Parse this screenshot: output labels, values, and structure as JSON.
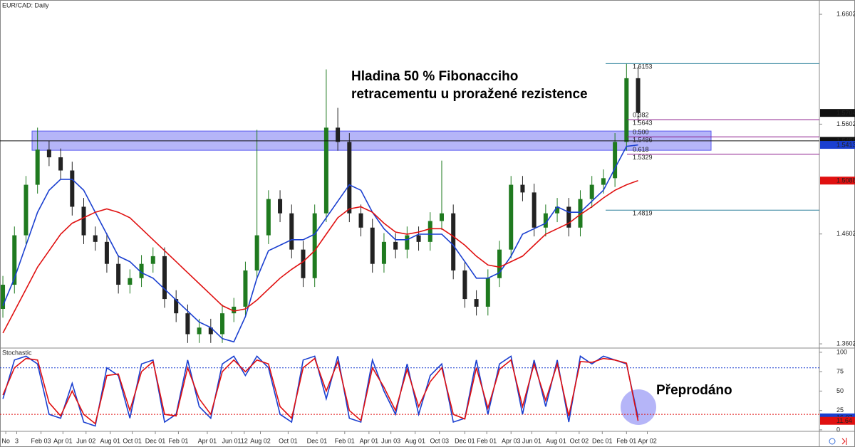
{
  "chart_data": [
    {
      "type": "candlestick",
      "title": "EUR/CAD: Daily",
      "xlim": [
        -0.25,
        70.7
      ],
      "open": [
        1.392,
        1.414,
        1.459,
        1.505,
        1.537,
        1.53,
        1.518,
        1.485,
        1.459,
        1.453,
        1.433,
        1.414,
        1.42,
        1.433,
        1.44,
        1.401,
        1.388,
        1.369,
        1.375,
        1.369,
        1.388,
        1.394,
        1.427,
        1.459,
        1.492,
        1.479,
        1.446,
        1.42,
        1.479,
        1.557,
        1.544,
        1.479,
        1.466,
        1.433,
        1.453,
        1.446,
        1.459,
        1.453,
        1.472,
        1.479,
        1.427,
        1.401,
        1.394,
        1.42,
        1.446,
        1.505,
        1.498,
        1.466,
        1.479,
        1.485,
        1.466,
        1.492,
        1.505,
        1.511,
        1.544,
        1.602
      ],
      "high": [
        1.422,
        1.467,
        1.513,
        1.557,
        1.545,
        1.538,
        1.526,
        1.493,
        1.467,
        1.461,
        1.441,
        1.428,
        1.441,
        1.448,
        1.448,
        1.409,
        1.396,
        1.383,
        1.383,
        1.396,
        1.402,
        1.435,
        1.555,
        1.5,
        1.5,
        1.487,
        1.454,
        1.487,
        1.61,
        1.575,
        1.552,
        1.487,
        1.474,
        1.461,
        1.461,
        1.467,
        1.467,
        1.48,
        1.527,
        1.487,
        1.435,
        1.409,
        1.428,
        1.454,
        1.513,
        1.513,
        1.506,
        1.487,
        1.493,
        1.493,
        1.5,
        1.513,
        1.519,
        1.552,
        1.6153,
        1.612
      ],
      "low": [
        1.384,
        1.406,
        1.451,
        1.497,
        1.522,
        1.51,
        1.477,
        1.451,
        1.445,
        1.425,
        1.406,
        1.406,
        1.412,
        1.425,
        1.393,
        1.38,
        1.361,
        1.361,
        1.361,
        1.361,
        1.38,
        1.386,
        1.419,
        1.451,
        1.471,
        1.438,
        1.412,
        1.412,
        1.471,
        1.536,
        1.471,
        1.458,
        1.425,
        1.425,
        1.438,
        1.438,
        1.445,
        1.445,
        1.464,
        1.419,
        1.393,
        1.386,
        1.386,
        1.412,
        1.438,
        1.49,
        1.458,
        1.458,
        1.471,
        1.458,
        1.458,
        1.484,
        1.497,
        1.503,
        1.536,
        1.562
      ],
      "close": [
        1.414,
        1.459,
        1.505,
        1.537,
        1.53,
        1.518,
        1.485,
        1.459,
        1.453,
        1.433,
        1.414,
        1.42,
        1.433,
        1.44,
        1.401,
        1.388,
        1.369,
        1.375,
        1.369,
        1.388,
        1.394,
        1.427,
        1.459,
        1.492,
        1.479,
        1.446,
        1.42,
        1.479,
        1.557,
        1.544,
        1.479,
        1.466,
        1.433,
        1.453,
        1.446,
        1.459,
        1.453,
        1.472,
        1.479,
        1.427,
        1.401,
        1.394,
        1.42,
        1.446,
        1.505,
        1.498,
        1.466,
        1.479,
        1.485,
        1.466,
        1.492,
        1.505,
        1.511,
        1.544,
        1.602,
        1.5704
      ],
      "up_color": "#1f7a1f",
      "down_color": "#222222",
      "series": [
        {
          "color": "#1a3fd0",
          "values": [
            1.395,
            1.42,
            1.45,
            1.48,
            1.5,
            1.51,
            1.51,
            1.5,
            1.48,
            1.46,
            1.44,
            1.435,
            1.425,
            1.42,
            1.41,
            1.4,
            1.39,
            1.38,
            1.375,
            1.365,
            1.362,
            1.385,
            1.42,
            1.445,
            1.45,
            1.455,
            1.455,
            1.46,
            1.475,
            1.49,
            1.505,
            1.5,
            1.48,
            1.465,
            1.455,
            1.455,
            1.46,
            1.46,
            1.46,
            1.45,
            1.435,
            1.42,
            1.42,
            1.425,
            1.44,
            1.46,
            1.465,
            1.47,
            1.485,
            1.48,
            1.48,
            1.49,
            1.5,
            1.52,
            1.54,
            1.5413
          ]
        },
        {
          "color": "#e01010",
          "values": [
            1.37,
            1.39,
            1.41,
            1.43,
            1.445,
            1.46,
            1.47,
            1.475,
            1.48,
            1.483,
            1.48,
            1.475,
            1.465,
            1.455,
            1.445,
            1.435,
            1.425,
            1.415,
            1.405,
            1.395,
            1.39,
            1.392,
            1.4,
            1.41,
            1.42,
            1.428,
            1.435,
            1.445,
            1.46,
            1.475,
            1.483,
            1.485,
            1.48,
            1.47,
            1.462,
            1.46,
            1.462,
            1.465,
            1.465,
            1.458,
            1.45,
            1.44,
            1.432,
            1.43,
            1.435,
            1.44,
            1.45,
            1.46,
            1.465,
            1.47,
            1.478,
            1.485,
            1.493,
            1.5,
            1.505,
            1.5088
          ]
        }
      ],
      "ylim": [
        1.357,
        1.6732
      ],
      "yticks": [
        1.6602,
        1.5602,
        1.4602,
        1.3602
      ],
      "zone": [
        1.5364,
        1.5539
      ],
      "zone_color": "#5a5af0",
      "hline": {
        "value": 1.545,
        "label": "1.5450"
      },
      "fib": [
        {
          "price": 1.6153,
          "color": "#2a7f9a"
        },
        {
          "ratio": "0.382",
          "price": 1.5643,
          "color": "#8a1a8a"
        },
        {
          "ratio": "0.500",
          "price": 1.5486,
          "color": "#8a1a8a"
        },
        {
          "ratio": "0.618",
          "price": 1.5329,
          "color": "#8a1a8a"
        },
        {
          "price": 1.4819,
          "color": "#2a7f9a"
        }
      ],
      "price_tags": [
        {
          "value": 1.5704,
          "color": "#111111"
        },
        {
          "value": {
            "value": 1.545,
            "label": "1.5450"
          },
          "color": "#111111"
        },
        {
          "value": 1.5413,
          "color": "#1a3fd0"
        },
        {
          "value": 1.5088,
          "color": "#e01010"
        }
      ],
      "annotation": [
        "Hladina 50 % Fibonacciho",
        "retracementu u proražené rezistence"
      ]
    },
    {
      "type": "line",
      "title": "Stochastic",
      "xlim": [
        -0.25,
        70.7
      ],
      "series": [
        {
          "color": "#1a3fd0",
          "values": [
            40,
            90,
            95,
            85,
            20,
            15,
            60,
            10,
            5,
            80,
            70,
            15,
            85,
            90,
            10,
            20,
            90,
            30,
            15,
            85,
            95,
            70,
            95,
            80,
            20,
            10,
            90,
            95,
            40,
            95,
            15,
            10,
            90,
            50,
            20,
            85,
            20,
            70,
            85,
            10,
            15,
            90,
            20,
            85,
            95,
            20,
            90,
            30,
            90,
            10,
            95,
            85,
            95,
            90,
            85,
            16.07
          ]
        },
        {
          "color": "#e01010",
          "values": [
            45,
            80,
            92,
            90,
            35,
            18,
            50,
            20,
            8,
            70,
            72,
            25,
            75,
            88,
            20,
            18,
            80,
            40,
            20,
            75,
            90,
            75,
            90,
            85,
            30,
            15,
            80,
            92,
            50,
            88,
            25,
            12,
            80,
            55,
            25,
            78,
            30,
            62,
            80,
            20,
            14,
            80,
            28,
            78,
            90,
            30,
            85,
            38,
            85,
            18,
            88,
            87,
            92,
            90,
            86,
            11.64
          ]
        }
      ],
      "ylim": [
        -1,
        104.5
      ],
      "yticks": [
        100,
        75,
        50,
        25,
        0
      ],
      "levels": [
        {
          "value": 80,
          "color": "#1a3fd0"
        },
        {
          "value": 20,
          "color": "#e01010"
        }
      ],
      "price_tags": [
        {
          "value": 16.07,
          "color": "#1a3fd0"
        },
        {
          "value": 11.64,
          "color": "#e01010"
        }
      ],
      "xticks": [
        {
          "value": 0.25,
          "label": "No"
        },
        {
          "value": 1.2,
          "label": "3"
        },
        {
          "value": 3.3,
          "label": "Feb 03"
        },
        {
          "value": 5.2,
          "label": "Apr 01"
        },
        {
          "value": 7.2,
          "label": "Jun 02"
        },
        {
          "value": 9.3,
          "label": "Aug 01"
        },
        {
          "value": 11.2,
          "label": "Oct 01"
        },
        {
          "value": 13.2,
          "label": "Dec 01"
        },
        {
          "value": 15.2,
          "label": "Feb 01"
        },
        {
          "value": 17.7,
          "label": "Apr 01"
        },
        {
          "value": 19.8,
          "label": "Jun 01"
        },
        {
          "value": 20.9,
          "label": "12"
        },
        {
          "value": 22.3,
          "label": "Aug 02"
        },
        {
          "value": 24.7,
          "label": "Oct 01"
        },
        {
          "value": 27.2,
          "label": "Dec 01"
        },
        {
          "value": 29.6,
          "label": "Feb 01"
        },
        {
          "value": 31.7,
          "label": "Apr 01"
        },
        {
          "value": 33.6,
          "label": "Jun 03"
        },
        {
          "value": 35.7,
          "label": "Aug 01"
        },
        {
          "value": 37.8,
          "label": "Oct 03"
        },
        {
          "value": 40,
          "label": "Dec 01"
        },
        {
          "value": 41.9,
          "label": "Feb 01"
        },
        {
          "value": 44,
          "label": "Apr 03"
        },
        {
          "value": 45.8,
          "label": "Jun 01"
        },
        {
          "value": 47.9,
          "label": "Aug 01"
        },
        {
          "value": 49.9,
          "label": "Oct 02"
        },
        {
          "value": 51.9,
          "label": "Dec 01"
        },
        {
          "value": 54,
          "label": "Feb 01"
        },
        {
          "value": 55.8,
          "label": "Apr 02"
        }
      ],
      "annotation": "Přeprodáno"
    }
  ]
}
